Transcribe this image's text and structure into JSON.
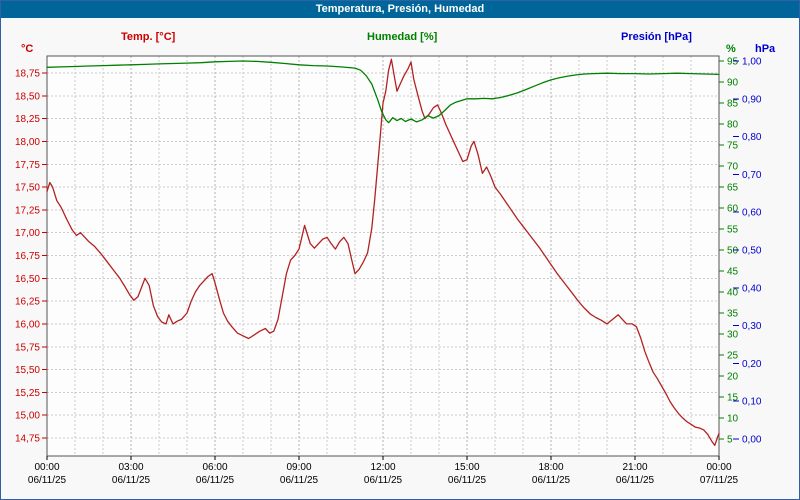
{
  "window": {
    "title": "Temperatura, Presión, Humedad"
  },
  "colors": {
    "titlebar_bg": "#006699",
    "titlebar_text": "#ffffff",
    "window_border": "#3060a8",
    "surface_bg": "#f8f8f8",
    "plot_bg": "#fdfdfd",
    "plot_border": "#555555",
    "grid": "#cccccc",
    "grid_major": "#b2b2b2",
    "axis_text": "#000000"
  },
  "legend": [
    {
      "label": "Temp. [°C]",
      "color": "#cc0000"
    },
    {
      "label": "Humedad [%]",
      "color": "#008000"
    },
    {
      "label": "Presión [hPa]",
      "color": "#0000cc"
    }
  ],
  "chart_data": {
    "type": "line",
    "title": "Temperatura, Presión, Humedad",
    "x_axis": {
      "label": "",
      "range_hours": [
        0,
        24
      ],
      "minor_grid_step_hours": 1,
      "ticks": [
        {
          "hour": 0,
          "time": "00:00",
          "date": "06/11/25"
        },
        {
          "hour": 3,
          "time": "03:00",
          "date": "06/11/25"
        },
        {
          "hour": 6,
          "time": "06:00",
          "date": "06/11/25"
        },
        {
          "hour": 9,
          "time": "09:00",
          "date": "06/11/25"
        },
        {
          "hour": 12,
          "time": "12:00",
          "date": "06/11/25"
        },
        {
          "hour": 15,
          "time": "15:00",
          "date": "06/11/25"
        },
        {
          "hour": 18,
          "time": "18:00",
          "date": "06/11/25"
        },
        {
          "hour": 21,
          "time": "21:00",
          "date": "06/11/25"
        },
        {
          "hour": 24,
          "time": "00:00",
          "date": "07/11/25"
        }
      ]
    },
    "axes": {
      "temperature": {
        "unit": "°C",
        "color": "#cc0000",
        "min": 14.75,
        "max": 18.75,
        "tick_step": 0.25,
        "tick_labels": [
          "18,75",
          "18,50",
          "18,25",
          "18,00",
          "17,75",
          "17,50",
          "17,25",
          "17,00",
          "16,75",
          "16,50",
          "16,25",
          "16,00",
          "15,75",
          "15,50",
          "15,25",
          "15,00",
          "14,75"
        ]
      },
      "humidity": {
        "unit": "%",
        "color": "#008000",
        "min": 5,
        "max": 95,
        "tick_step": 5,
        "tick_labels": [
          "95",
          "90",
          "85",
          "80",
          "75",
          "70",
          "65",
          "60",
          "55",
          "50",
          "45",
          "40",
          "35",
          "30",
          "25",
          "20",
          "15",
          "10",
          "5"
        ]
      },
      "pressure": {
        "unit": "hPa",
        "color": "#0000cc",
        "min": 0.0,
        "max": 1.0,
        "tick_step": 0.1,
        "tick_labels": [
          "1,00",
          "0,90",
          "0,80",
          "0,70",
          "0,60",
          "0,50",
          "0,40",
          "0,30",
          "0,20",
          "0,10",
          "0,00"
        ]
      }
    },
    "series": [
      {
        "name": "Temp. [°C]",
        "axis": "temperature",
        "color": "#b22222",
        "points": [
          [
            0,
            17.45
          ],
          [
            0.1,
            17.55
          ],
          [
            0.2,
            17.5
          ],
          [
            0.35,
            17.35
          ],
          [
            0.5,
            17.28
          ],
          [
            0.7,
            17.15
          ],
          [
            0.9,
            17.03
          ],
          [
            1.05,
            16.97
          ],
          [
            1.2,
            17.0
          ],
          [
            1.35,
            16.95
          ],
          [
            1.5,
            16.9
          ],
          [
            1.7,
            16.85
          ],
          [
            1.9,
            16.78
          ],
          [
            2.05,
            16.72
          ],
          [
            2.2,
            16.66
          ],
          [
            2.4,
            16.58
          ],
          [
            2.6,
            16.5
          ],
          [
            2.8,
            16.4
          ],
          [
            2.95,
            16.32
          ],
          [
            3.1,
            16.26
          ],
          [
            3.25,
            16.3
          ],
          [
            3.4,
            16.42
          ],
          [
            3.5,
            16.5
          ],
          [
            3.65,
            16.42
          ],
          [
            3.8,
            16.2
          ],
          [
            3.95,
            16.08
          ],
          [
            4.1,
            16.02
          ],
          [
            4.25,
            16.0
          ],
          [
            4.35,
            16.1
          ],
          [
            4.5,
            16.0
          ],
          [
            4.65,
            16.03
          ],
          [
            4.8,
            16.05
          ],
          [
            5.0,
            16.12
          ],
          [
            5.15,
            16.25
          ],
          [
            5.3,
            16.35
          ],
          [
            5.45,
            16.42
          ],
          [
            5.6,
            16.47
          ],
          [
            5.75,
            16.52
          ],
          [
            5.9,
            16.55
          ],
          [
            6.0,
            16.45
          ],
          [
            6.15,
            16.28
          ],
          [
            6.3,
            16.12
          ],
          [
            6.45,
            16.03
          ],
          [
            6.6,
            15.97
          ],
          [
            6.8,
            15.9
          ],
          [
            7.0,
            15.87
          ],
          [
            7.2,
            15.84
          ],
          [
            7.4,
            15.88
          ],
          [
            7.6,
            15.92
          ],
          [
            7.8,
            15.95
          ],
          [
            7.95,
            15.9
          ],
          [
            8.1,
            15.92
          ],
          [
            8.25,
            16.05
          ],
          [
            8.4,
            16.3
          ],
          [
            8.55,
            16.55
          ],
          [
            8.7,
            16.7
          ],
          [
            8.85,
            16.75
          ],
          [
            9.0,
            16.82
          ],
          [
            9.1,
            16.95
          ],
          [
            9.2,
            17.08
          ],
          [
            9.3,
            16.98
          ],
          [
            9.4,
            16.88
          ],
          [
            9.55,
            16.83
          ],
          [
            9.7,
            16.88
          ],
          [
            9.85,
            16.93
          ],
          [
            10.0,
            16.95
          ],
          [
            10.15,
            16.88
          ],
          [
            10.3,
            16.82
          ],
          [
            10.45,
            16.9
          ],
          [
            10.6,
            16.95
          ],
          [
            10.75,
            16.88
          ],
          [
            10.9,
            16.68
          ],
          [
            11.0,
            16.55
          ],
          [
            11.15,
            16.6
          ],
          [
            11.3,
            16.68
          ],
          [
            11.45,
            16.78
          ],
          [
            11.6,
            17.05
          ],
          [
            11.7,
            17.35
          ],
          [
            11.8,
            17.7
          ],
          [
            11.9,
            18.05
          ],
          [
            12.0,
            18.42
          ],
          [
            12.1,
            18.55
          ],
          [
            12.2,
            18.78
          ],
          [
            12.3,
            18.9
          ],
          [
            12.4,
            18.72
          ],
          [
            12.5,
            18.55
          ],
          [
            12.6,
            18.62
          ],
          [
            12.75,
            18.72
          ],
          [
            12.9,
            18.8
          ],
          [
            13.0,
            18.87
          ],
          [
            13.1,
            18.68
          ],
          [
            13.25,
            18.5
          ],
          [
            13.4,
            18.33
          ],
          [
            13.5,
            18.25
          ],
          [
            13.65,
            18.3
          ],
          [
            13.8,
            18.37
          ],
          [
            13.95,
            18.4
          ],
          [
            14.1,
            18.3
          ],
          [
            14.25,
            18.18
          ],
          [
            14.4,
            18.08
          ],
          [
            14.55,
            17.98
          ],
          [
            14.7,
            17.88
          ],
          [
            14.85,
            17.78
          ],
          [
            15.0,
            17.8
          ],
          [
            15.15,
            17.95
          ],
          [
            15.25,
            18.0
          ],
          [
            15.4,
            17.85
          ],
          [
            15.55,
            17.65
          ],
          [
            15.7,
            17.72
          ],
          [
            15.85,
            17.62
          ],
          [
            16.0,
            17.5
          ],
          [
            16.2,
            17.42
          ],
          [
            16.4,
            17.33
          ],
          [
            16.6,
            17.24
          ],
          [
            16.8,
            17.15
          ],
          [
            17.0,
            17.07
          ],
          [
            17.2,
            16.99
          ],
          [
            17.4,
            16.91
          ],
          [
            17.6,
            16.83
          ],
          [
            17.8,
            16.74
          ],
          [
            18.0,
            16.65
          ],
          [
            18.2,
            16.56
          ],
          [
            18.4,
            16.48
          ],
          [
            18.6,
            16.4
          ],
          [
            18.8,
            16.32
          ],
          [
            19.0,
            16.24
          ],
          [
            19.2,
            16.17
          ],
          [
            19.4,
            16.11
          ],
          [
            19.6,
            16.07
          ],
          [
            19.8,
            16.04
          ],
          [
            20.0,
            16.0
          ],
          [
            20.2,
            16.05
          ],
          [
            20.4,
            16.1
          ],
          [
            20.55,
            16.05
          ],
          [
            20.7,
            16.0
          ],
          [
            20.9,
            16.0
          ],
          [
            21.05,
            15.97
          ],
          [
            21.2,
            15.85
          ],
          [
            21.35,
            15.7
          ],
          [
            21.5,
            15.58
          ],
          [
            21.65,
            15.47
          ],
          [
            21.8,
            15.4
          ],
          [
            21.95,
            15.32
          ],
          [
            22.1,
            15.24
          ],
          [
            22.25,
            15.15
          ],
          [
            22.4,
            15.08
          ],
          [
            22.55,
            15.02
          ],
          [
            22.7,
            14.97
          ],
          [
            22.85,
            14.93
          ],
          [
            23.0,
            14.9
          ],
          [
            23.15,
            14.87
          ],
          [
            23.3,
            14.86
          ],
          [
            23.45,
            14.84
          ],
          [
            23.6,
            14.79
          ],
          [
            23.75,
            14.71
          ],
          [
            23.85,
            14.67
          ],
          [
            23.95,
            14.76
          ],
          [
            24,
            14.8
          ]
        ]
      },
      {
        "name": "Humedad [%]",
        "axis": "humidity",
        "color": "#008000",
        "points": [
          [
            0,
            93.5
          ],
          [
            0.5,
            93.6
          ],
          [
            1,
            93.7
          ],
          [
            1.5,
            93.8
          ],
          [
            2,
            93.9
          ],
          [
            2.5,
            94.0
          ],
          [
            3,
            94.1
          ],
          [
            3.5,
            94.2
          ],
          [
            4,
            94.3
          ],
          [
            4.5,
            94.4
          ],
          [
            5,
            94.5
          ],
          [
            5.5,
            94.6
          ],
          [
            6,
            94.8
          ],
          [
            6.5,
            94.9
          ],
          [
            7,
            95.0
          ],
          [
            7.5,
            94.9
          ],
          [
            8,
            94.7
          ],
          [
            8.5,
            94.4
          ],
          [
            9,
            94.1
          ],
          [
            9.5,
            93.9
          ],
          [
            10,
            93.8
          ],
          [
            10.5,
            93.6
          ],
          [
            11,
            93.3
          ],
          [
            11.2,
            92.8
          ],
          [
            11.4,
            91.5
          ],
          [
            11.6,
            89.5
          ],
          [
            11.8,
            86.0
          ],
          [
            11.95,
            83.0
          ],
          [
            12.1,
            81.0
          ],
          [
            12.2,
            80.3
          ],
          [
            12.35,
            81.5
          ],
          [
            12.5,
            80.8
          ],
          [
            12.65,
            81.3
          ],
          [
            12.8,
            80.6
          ],
          [
            13.0,
            81.2
          ],
          [
            13.2,
            80.5
          ],
          [
            13.4,
            81.0
          ],
          [
            13.6,
            82.0
          ],
          [
            13.8,
            81.4
          ],
          [
            14.0,
            82.0
          ],
          [
            14.2,
            83.2
          ],
          [
            14.4,
            84.5
          ],
          [
            14.6,
            85.2
          ],
          [
            14.8,
            85.6
          ],
          [
            15.0,
            86.0
          ],
          [
            15.3,
            86.0
          ],
          [
            15.6,
            86.1
          ],
          [
            15.9,
            86.0
          ],
          [
            16.2,
            86.3
          ],
          [
            16.5,
            86.8
          ],
          [
            16.8,
            87.4
          ],
          [
            17.1,
            88.2
          ],
          [
            17.4,
            89.0
          ],
          [
            17.7,
            89.8
          ],
          [
            18.0,
            90.5
          ],
          [
            18.3,
            91.0
          ],
          [
            18.6,
            91.4
          ],
          [
            18.9,
            91.7
          ],
          [
            19.2,
            91.9
          ],
          [
            19.5,
            92.0
          ],
          [
            20.0,
            92.1
          ],
          [
            20.5,
            92.0
          ],
          [
            21.0,
            92.0
          ],
          [
            21.5,
            91.9
          ],
          [
            22.0,
            92.0
          ],
          [
            22.5,
            92.1
          ],
          [
            23.0,
            92.0
          ],
          [
            23.5,
            91.9
          ],
          [
            24,
            91.8
          ]
        ]
      },
      {
        "name": "Presión [hPa]",
        "axis": "pressure",
        "color": "#0000cc",
        "points": []
      }
    ]
  }
}
